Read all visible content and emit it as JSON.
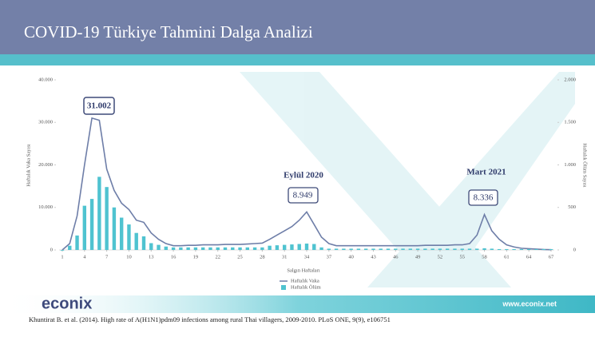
{
  "header": {
    "title": "COVID-19 Türkiye Tahmini Dalga Analizi"
  },
  "chart_data": {
    "type": "line-bar",
    "y_label": "Haftalık Vaka Sayısı",
    "y2_label": "Haftalık Ölüm Sayısı",
    "x_label": "Salgın Haftaları",
    "x": [
      1,
      2,
      3,
      4,
      5,
      6,
      7,
      8,
      9,
      10,
      11,
      12,
      13,
      14,
      15,
      16,
      17,
      18,
      19,
      20,
      21,
      22,
      23,
      24,
      25,
      26,
      27,
      28,
      29,
      30,
      31,
      32,
      33,
      34,
      35,
      36,
      37,
      38,
      39,
      40,
      41,
      42,
      43,
      44,
      45,
      46,
      47,
      48,
      49,
      50,
      51,
      52,
      53,
      54,
      55,
      56,
      57,
      58,
      59,
      60,
      61,
      62,
      63,
      64,
      65,
      66,
      67
    ],
    "xlim": [
      1,
      67
    ],
    "xticks": [
      1,
      4,
      7,
      10,
      13,
      16,
      19,
      22,
      25,
      28,
      31,
      34,
      37,
      40,
      43,
      46,
      49,
      52,
      55,
      58,
      61,
      64,
      67
    ],
    "ylim": [
      0,
      40000
    ],
    "yticks": [
      0,
      {
        "value": 10000,
        "label": "10.000"
      },
      {
        "value": 20000,
        "label": "20.000"
      },
      {
        "value": 30000,
        "label": "30.000"
      },
      {
        "value": 40000,
        "label": "40.000"
      }
    ],
    "y2lim": [
      0,
      2000
    ],
    "y2ticks": [
      0,
      500,
      {
        "value": 1000,
        "label": "1.000"
      },
      {
        "value": 1500,
        "label": "1.500"
      },
      {
        "value": 2000,
        "label": "2.000"
      }
    ],
    "series": [
      {
        "name": "Haftalık Vaka",
        "color": "#6e7ea8",
        "kind": "line",
        "values": [
          0,
          1500,
          8000,
          20000,
          31002,
          30500,
          19000,
          14000,
          11000,
          9500,
          7000,
          6500,
          4000,
          2500,
          1500,
          1000,
          1000,
          1100,
          1100,
          1200,
          1200,
          1200,
          1300,
          1300,
          1300,
          1400,
          1500,
          1600,
          2500,
          3500,
          4500,
          5500,
          7000,
          8949,
          6000,
          3000,
          1500,
          1000,
          1000,
          1000,
          1000,
          1000,
          1000,
          1000,
          1000,
          1000,
          1000,
          1000,
          1000,
          1100,
          1100,
          1100,
          1100,
          1200,
          1200,
          1500,
          3500,
          8336,
          4500,
          2500,
          1200,
          700,
          400,
          300,
          200,
          100,
          50
        ]
      },
      {
        "name": "Haftalık Ölüm",
        "color": "#4fc3d0",
        "kind": "bar",
        "axis": "y2",
        "values": [
          0,
          50,
          170,
          520,
          600,
          860,
          740,
          500,
          380,
          300,
          200,
          160,
          80,
          60,
          40,
          30,
          30,
          30,
          30,
          30,
          30,
          30,
          30,
          30,
          30,
          30,
          30,
          30,
          50,
          55,
          60,
          65,
          70,
          75,
          70,
          30,
          15,
          15,
          15,
          15,
          15,
          15,
          15,
          15,
          15,
          15,
          15,
          15,
          15,
          15,
          15,
          15,
          15,
          15,
          15,
          15,
          15,
          20,
          15,
          10,
          10,
          10,
          10,
          10,
          10,
          10,
          10
        ]
      }
    ],
    "annotations": [
      "31.002",
      "Eylül 2020",
      "8.949",
      "Mart 2021",
      "8.336"
    ]
  },
  "footer": {
    "logo": "econix",
    "url": "www.econix.net",
    "citation": "Khuntirat B. et al. (2014). High rate of A(H1N1)pdm09 infections among rural Thai villagers, 2009-2010. PLoS ONE, 9(9), e106751"
  }
}
